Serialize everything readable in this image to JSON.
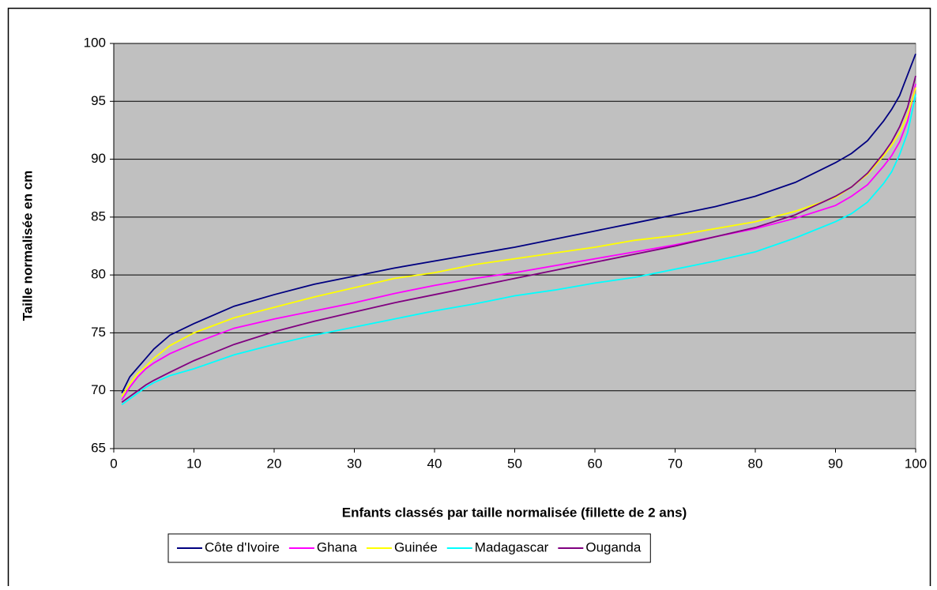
{
  "chart_data": {
    "type": "line",
    "x_label": "Enfants classés par taille normalisée (fillette de 2 ans)",
    "y_label": "Taille normalisée en cm",
    "x": [
      1,
      2,
      3,
      4,
      5,
      7,
      10,
      15,
      20,
      25,
      30,
      35,
      40,
      45,
      50,
      55,
      60,
      65,
      70,
      75,
      80,
      85,
      90,
      92,
      94,
      96,
      97,
      98,
      99,
      100
    ],
    "series": [
      {
        "name": "Côte d'Ivoire",
        "color": "#000080",
        "values": [
          69.8,
          71.2,
          72,
          72.8,
          73.6,
          74.8,
          75.8,
          77.3,
          78.3,
          79.2,
          79.9,
          80.6,
          81.2,
          81.8,
          82.4,
          83.1,
          83.8,
          84.5,
          85.2,
          85.9,
          86.8,
          88,
          89.7,
          90.5,
          91.6,
          93.3,
          94.3,
          95.5,
          97.3,
          99.1
        ]
      },
      {
        "name": "Ghana",
        "color": "#ff00ff",
        "values": [
          69.2,
          70.3,
          71.2,
          71.9,
          72.4,
          73.2,
          74.1,
          75.4,
          76.2,
          76.9,
          77.6,
          78.4,
          79.1,
          79.7,
          80.2,
          80.8,
          81.4,
          82,
          82.6,
          83.3,
          84,
          84.9,
          86,
          86.8,
          87.8,
          89.4,
          90.3,
          91.5,
          93.3,
          96.5
        ]
      },
      {
        "name": "Guinée",
        "color": "#ffff00",
        "values": [
          69.5,
          70.6,
          71.5,
          72.1,
          72.8,
          73.9,
          75,
          76.3,
          77.2,
          78.1,
          78.9,
          79.7,
          80.2,
          80.9,
          81.4,
          81.9,
          82.4,
          83,
          83.4,
          84,
          84.6,
          85.5,
          86.7,
          87.6,
          88.7,
          90.3,
          91.2,
          92.3,
          93.8,
          96.2
        ]
      },
      {
        "name": "Madagascar",
        "color": "#00ffff",
        "values": [
          68.8,
          69.3,
          69.8,
          70.3,
          70.7,
          71.3,
          71.9,
          73.1,
          74,
          74.8,
          75.5,
          76.2,
          76.9,
          77.5,
          78.2,
          78.7,
          79.3,
          79.8,
          80.5,
          81.2,
          82,
          83.2,
          84.6,
          85.3,
          86.3,
          87.9,
          88.9,
          90.4,
          92.3,
          95.6
        ]
      },
      {
        "name": "Ouganda",
        "color": "#800080",
        "values": [
          69,
          69.5,
          70,
          70.5,
          70.9,
          71.6,
          72.6,
          74,
          75.1,
          76,
          76.8,
          77.6,
          78.3,
          79,
          79.7,
          80.4,
          81.1,
          81.8,
          82.5,
          83.3,
          84.1,
          85.2,
          86.8,
          87.6,
          88.8,
          90.5,
          91.5,
          92.8,
          94.5,
          97.2
        ]
      }
    ],
    "xlim": [
      0,
      100
    ],
    "xticks": [
      0,
      10,
      20,
      30,
      40,
      50,
      60,
      70,
      80,
      90,
      100
    ],
    "ylim": [
      65,
      100
    ],
    "yticks": [
      65,
      70,
      75,
      80,
      85,
      90,
      95,
      100
    ],
    "grid": true,
    "plot_background": "#c0c0c0",
    "legend": "bottom"
  }
}
